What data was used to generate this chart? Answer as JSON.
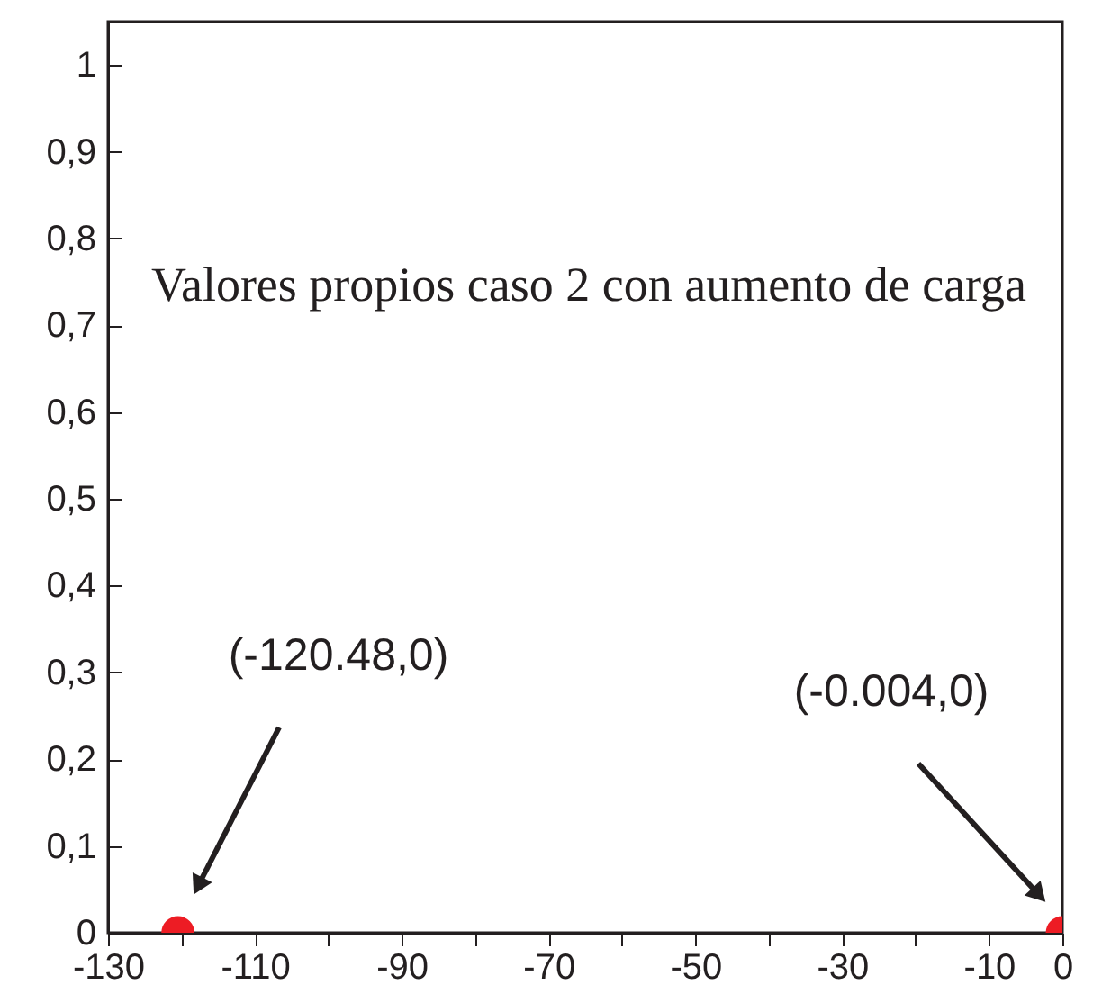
{
  "chart_data": {
    "type": "scatter",
    "x": [
      -120.48,
      -0.004
    ],
    "values": [
      0,
      0
    ],
    "color": "#ed1c24",
    "marker": "circle",
    "xlim": [
      -130,
      0
    ],
    "xticks": [
      -130,
      {
        "value": -120,
        "label": null
      },
      -110,
      {
        "value": -100,
        "label": null
      },
      -90,
      {
        "value": -80,
        "label": null
      },
      -70,
      {
        "value": -60,
        "label": null
      },
      -50,
      {
        "value": -40,
        "label": null
      },
      -30,
      {
        "value": -20,
        "label": null
      },
      -10,
      0
    ],
    "ylim": [
      0,
      1.05
    ],
    "yticks": [
      0,
      {
        "value": 0.1,
        "label": "0,1"
      },
      {
        "value": 0.2,
        "label": "0,2"
      },
      {
        "value": 0.3,
        "label": "0,3"
      },
      {
        "value": 0.4,
        "label": "0,4"
      },
      {
        "value": 0.5,
        "label": "0,5"
      },
      {
        "value": 0.6,
        "label": "0,6"
      },
      {
        "value": 0.7,
        "label": "0,7"
      },
      {
        "value": 0.8,
        "label": "0,8"
      },
      {
        "value": 0.9,
        "label": "0,9"
      },
      1
    ],
    "grid": false,
    "annotations": [
      "Valores propios caso 2 con aumento de carga",
      "(-120.48,0)",
      "(-0.004,0)"
    ]
  }
}
